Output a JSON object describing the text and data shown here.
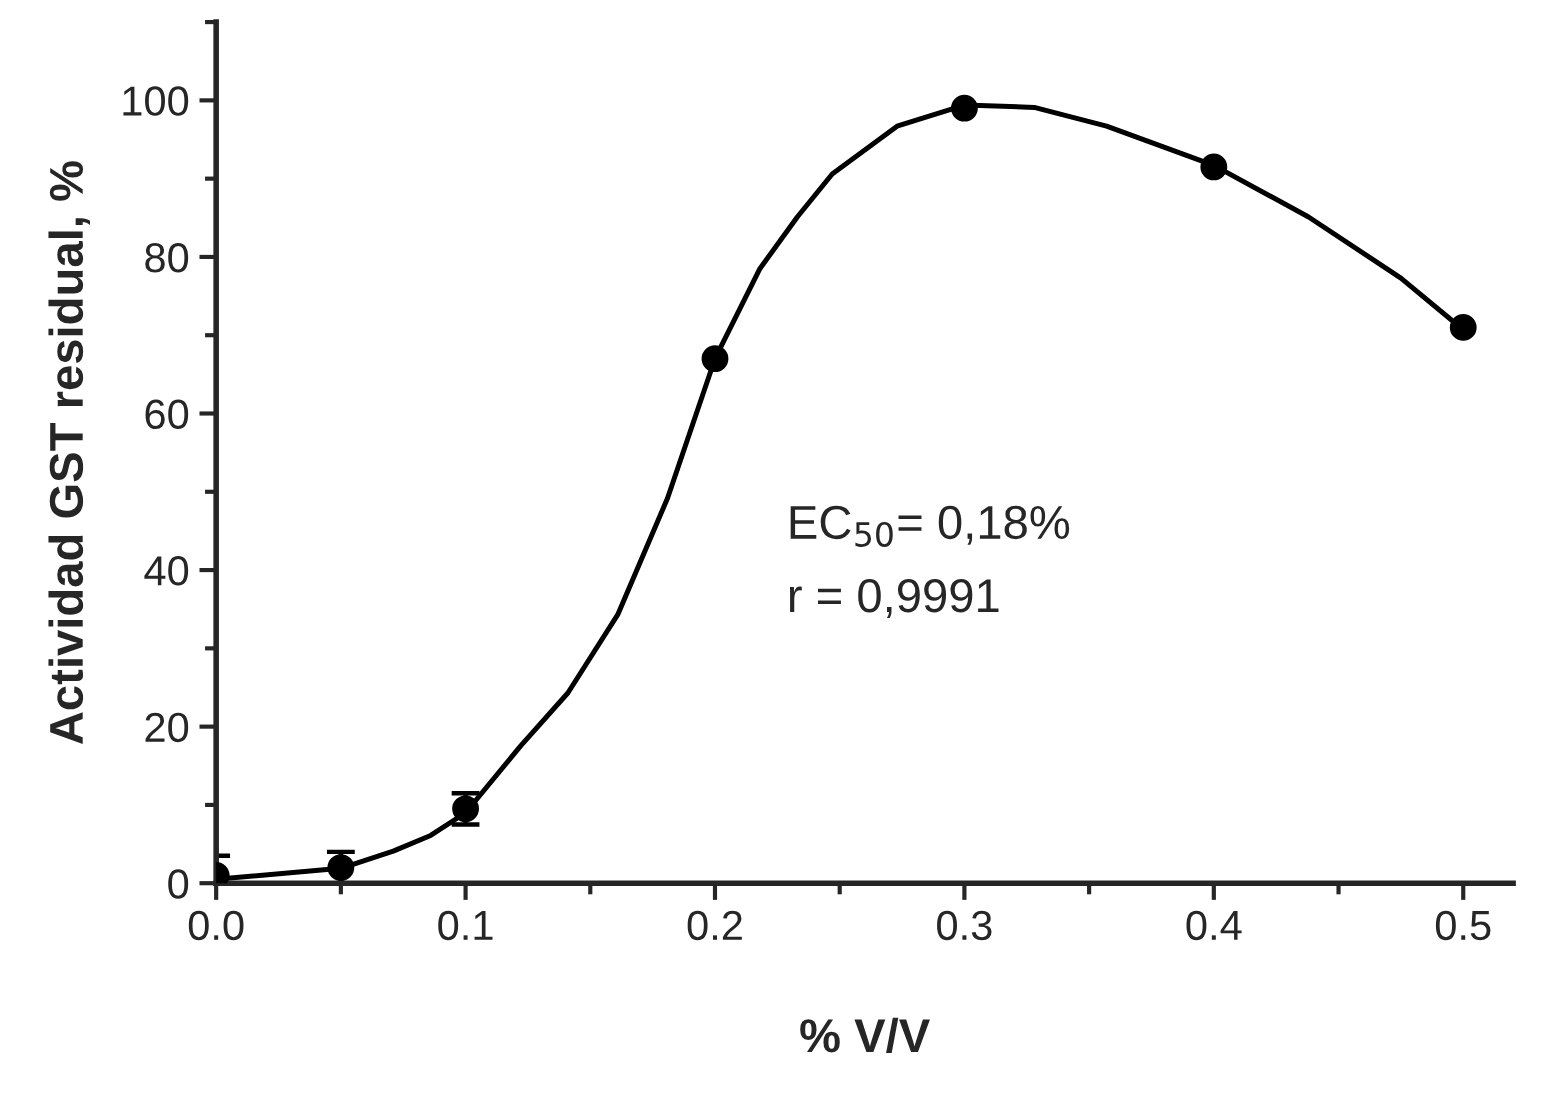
{
  "chart_data": {
    "type": "scatter",
    "xlabel": "% V/V",
    "ylabel": "Actividad GST residual, %",
    "xlim": [
      0,
      0.52
    ],
    "ylim": [
      0,
      110
    ],
    "xticks": [
      {
        "value": 0,
        "label": "0.0"
      },
      0.1,
      0.2,
      0.3,
      0.4,
      0.5
    ],
    "yticks": [
      0,
      20,
      40,
      60,
      80,
      100
    ],
    "grid": false,
    "series": [
      {
        "color": "#000000",
        "marker": "circle",
        "x": [
          0,
          0.05,
          0.1,
          0.2,
          0.3,
          0.4,
          0.5
        ],
        "values": [
          1,
          2,
          9.5,
          67,
          99,
          91.5,
          71
        ],
        "errors": [
          2.5,
          2,
          2,
          null,
          null,
          null,
          null
        ]
      },
      {
        "type": "line",
        "color": "#000000",
        "line_style": "solid",
        "marker": "none",
        "x": [
          0,
          0.05,
          0.071,
          0.086,
          0.1,
          0.122,
          0.141,
          0.161,
          0.181,
          0.2,
          0.218,
          0.233,
          0.247,
          0.273,
          0.3,
          0.328,
          0.357,
          0.4,
          0.438,
          0.475,
          0.5
        ],
        "values": [
          0.5,
          1.9,
          4.1,
          6.1,
          9,
          17.5,
          24.3,
          34.3,
          49.2,
          67,
          78.5,
          85.1,
          90.6,
          96.7,
          99.4,
          99.1,
          96.7,
          91.7,
          85.1,
          77.3,
          70.7
        ]
      }
    ],
    "annotations": [
      "EC$_{50}$= 0,18%",
      "r = 0,9991"
    ]
  }
}
